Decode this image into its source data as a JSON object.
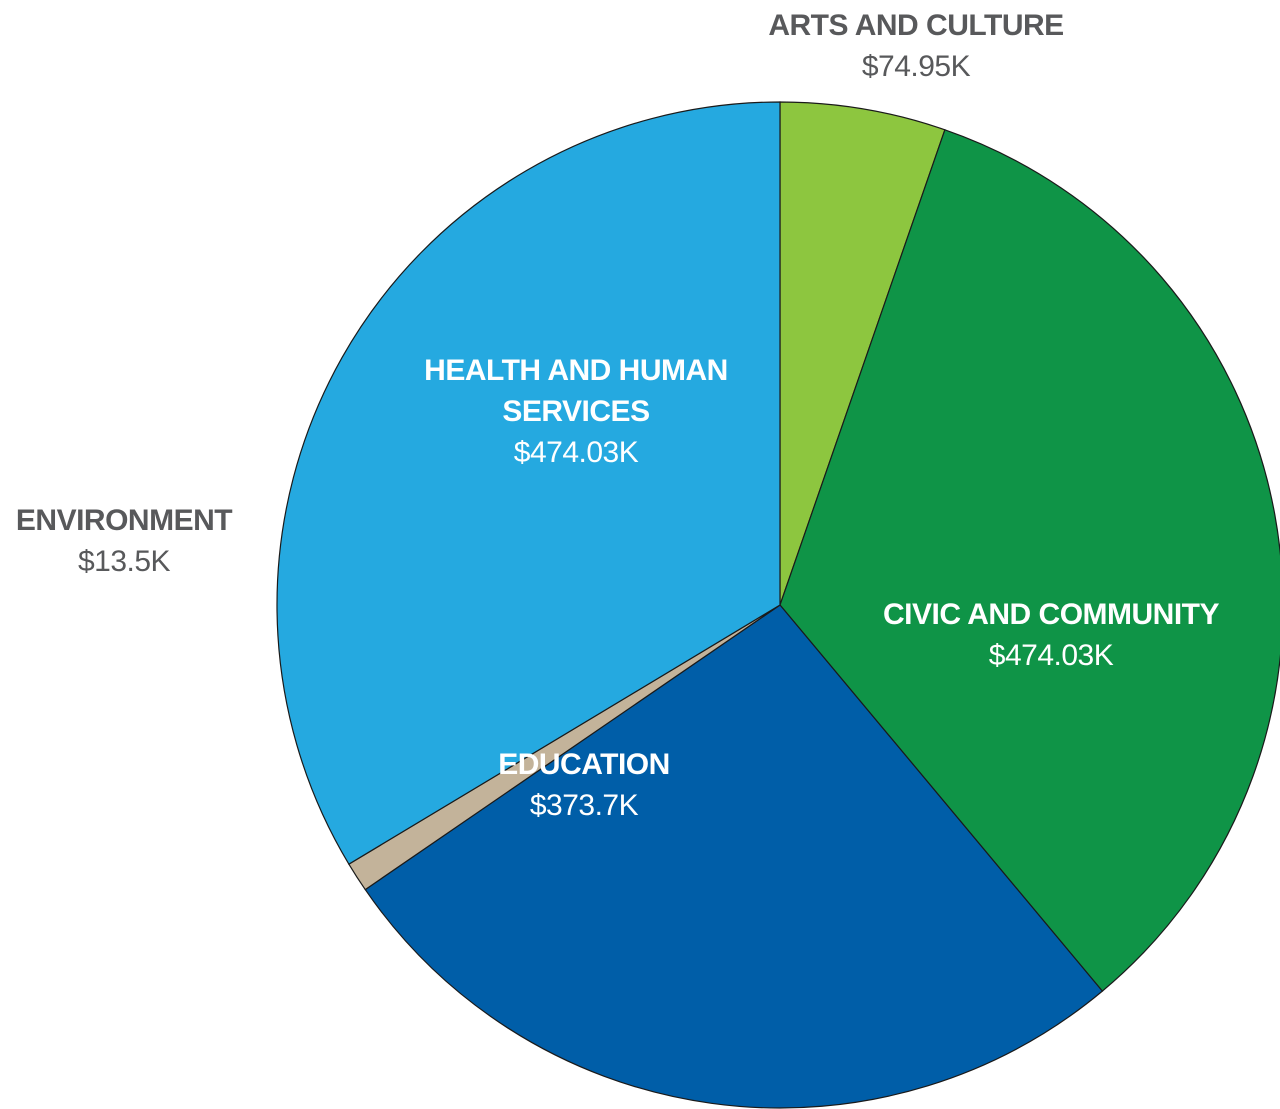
{
  "chart_data": {
    "type": "pie",
    "slices": [
      {
        "label": "ARTS AND CULTURE",
        "value_label": "$74.95K",
        "value": 74.95,
        "color": "#8dc63f",
        "label_color": "#58595b"
      },
      {
        "label": "CIVIC AND COMMUNITY",
        "value_label": "$474.03K",
        "value": 474.03,
        "color": "#0f9447",
        "label_color": "#ffffff"
      },
      {
        "label": "EDUCATION",
        "value_label": "$373.7K",
        "value": 373.7,
        "color": "#005ea8",
        "label_color": "#ffffff"
      },
      {
        "label": "ENVIRONMENT",
        "value_label": "$13.5K",
        "value": 13.5,
        "color": "#c3b39a",
        "label_color": "#58595b"
      },
      {
        "label": "HEALTH AND HUMAN SERVICES",
        "value_label": "$474.03K",
        "value": 474.03,
        "color": "#25a9e0",
        "label_color": "#ffffff"
      }
    ]
  }
}
